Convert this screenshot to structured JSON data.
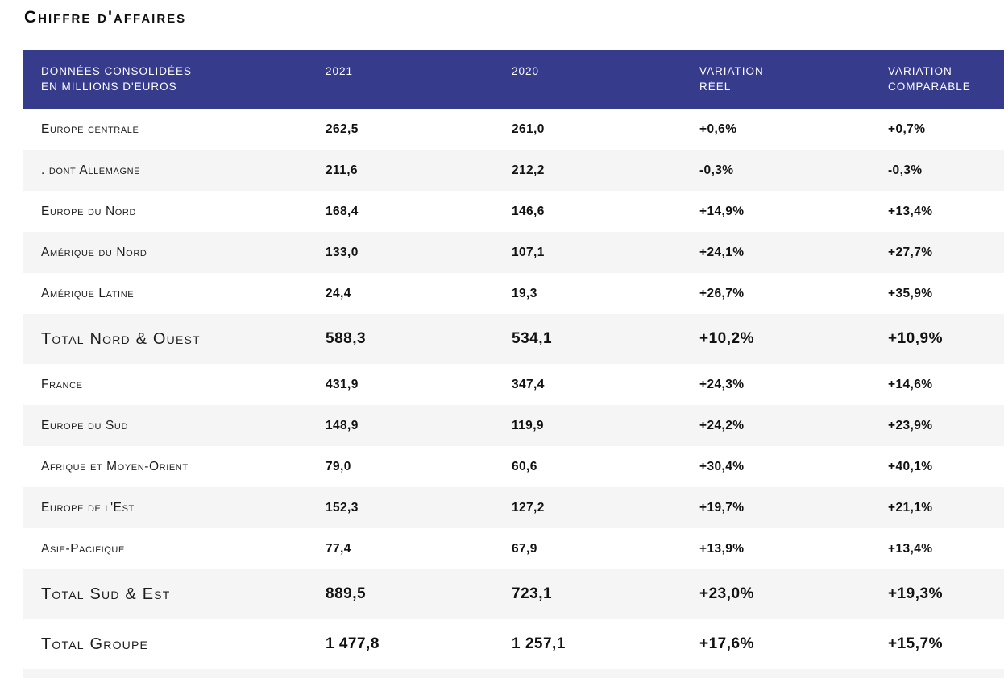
{
  "title": "Chiffre d'affaires",
  "colors": {
    "header_bg": "#363b8c",
    "header_text": "#ffffff",
    "alt_row_bg": "#f5f5f5",
    "body_text": "#1a1a1a"
  },
  "table": {
    "header": {
      "col1": [
        "DONNÉES CONSOLIDÉES",
        "EN MILLIONS D'EUROS"
      ],
      "col2": "2021",
      "col3": "2020",
      "col4": [
        "VARIATION",
        "RÉEL"
      ],
      "col5": [
        "VARIATION",
        "COMPARABLE"
      ]
    },
    "rows": [
      {
        "label": "Europe centrale",
        "v2021": "262,5",
        "v2020": "261,0",
        "var_reel": "+0,6%",
        "var_comparable": "+0,7%",
        "is_total": false
      },
      {
        "label": ". dont Allemagne",
        "v2021": "211,6",
        "v2020": "212,2",
        "var_reel": "-0,3%",
        "var_comparable": "-0,3%",
        "is_total": false
      },
      {
        "label": "Europe du Nord",
        "v2021": "168,4",
        "v2020": "146,6",
        "var_reel": "+14,9%",
        "var_comparable": "+13,4%",
        "is_total": false
      },
      {
        "label": "Amérique du Nord",
        "v2021": "133,0",
        "v2020": "107,1",
        "var_reel": "+24,1%",
        "var_comparable": "+27,7%",
        "is_total": false
      },
      {
        "label": "Amérique Latine",
        "v2021": "24,4",
        "v2020": "19,3",
        "var_reel": "+26,7%",
        "var_comparable": "+35,9%",
        "is_total": false
      },
      {
        "label": "Total Nord & Ouest",
        "v2021": "588,3",
        "v2020": "534,1",
        "var_reel": "+10,2%",
        "var_comparable": "+10,9%",
        "is_total": true
      },
      {
        "label": "France",
        "v2021": "431,9",
        "v2020": "347,4",
        "var_reel": "+24,3%",
        "var_comparable": "+14,6%",
        "is_total": false
      },
      {
        "label": "Europe du Sud",
        "v2021": "148,9",
        "v2020": "119,9",
        "var_reel": "+24,2%",
        "var_comparable": "+23,9%",
        "is_total": false
      },
      {
        "label": "Afrique et Moyen-Orient",
        "v2021": "79,0",
        "v2020": "60,6",
        "var_reel": "+30,4%",
        "var_comparable": "+40,1%",
        "is_total": false
      },
      {
        "label": "Europe de l'Est",
        "v2021": "152,3",
        "v2020": "127,2",
        "var_reel": "+19,7%",
        "var_comparable": "+21,1%",
        "is_total": false
      },
      {
        "label": "Asie-Pacifique",
        "v2021": "77,4",
        "v2020": "67,9",
        "var_reel": "+13,9%",
        "var_comparable": "+13,4%",
        "is_total": false
      },
      {
        "label": "Total Sud & Est",
        "v2021": "889,5",
        "v2020": "723,1",
        "var_reel": "+23,0%",
        "var_comparable": "+19,3%",
        "is_total": true
      },
      {
        "label": "Total Groupe",
        "v2021": "1 477,8",
        "v2020": "1 257,1",
        "var_reel": "+17,6%",
        "var_comparable": "+15,7%",
        "is_total": true
      }
    ]
  }
}
